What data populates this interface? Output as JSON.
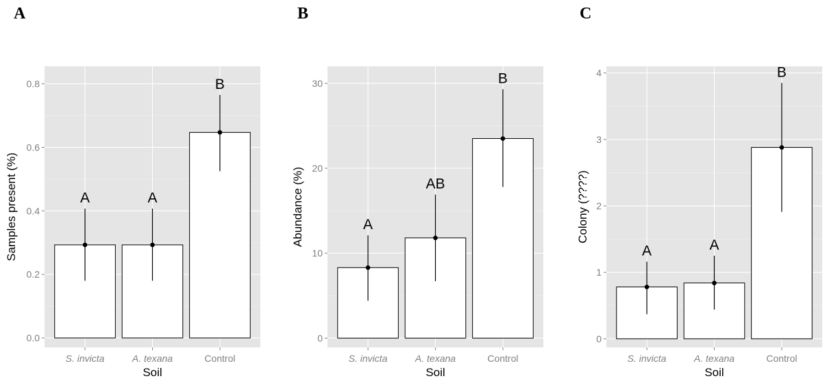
{
  "chart_data": [
    {
      "type": "bar",
      "panel": "A",
      "categories": [
        "S. invicta",
        "A. texana",
        "Control"
      ],
      "categories_italic": [
        true,
        true,
        false
      ],
      "values": [
        0.293,
        0.293,
        0.647
      ],
      "error_low": [
        0.18,
        0.18,
        0.525
      ],
      "error_high": [
        0.407,
        0.407,
        0.765
      ],
      "significance": [
        "A",
        "A",
        "B"
      ],
      "xlabel": "Soil",
      "ylabel": "Samples present (%)",
      "ylim": [
        -0.03,
        0.855
      ],
      "yticks": [
        0.0,
        0.2,
        0.4,
        0.6,
        0.8
      ],
      "ytick_labels": [
        "0.0",
        "0.2",
        "0.4",
        "0.6",
        "0.8"
      ],
      "grid": true
    },
    {
      "type": "bar",
      "panel": "B",
      "categories": [
        "S. invicta",
        "A. texana",
        "Control"
      ],
      "categories_italic": [
        true,
        true,
        false
      ],
      "values": [
        8.3,
        11.8,
        23.5
      ],
      "error_low": [
        4.4,
        6.7,
        17.8
      ],
      "error_high": [
        12.1,
        16.9,
        29.3
      ],
      "significance": [
        "A",
        "AB",
        "B"
      ],
      "xlabel": "Soil",
      "ylabel": "Abundance (%)",
      "ylim": [
        -1.1,
        32.0
      ],
      "yticks": [
        0,
        10,
        20,
        30
      ],
      "ytick_labels": [
        "0",
        "10",
        "20",
        "30"
      ],
      "grid": true
    },
    {
      "type": "bar",
      "panel": "C",
      "categories": [
        "S. invicta",
        "A. texana",
        "Control"
      ],
      "categories_italic": [
        true,
        true,
        false
      ],
      "values": [
        0.78,
        0.84,
        2.88
      ],
      "error_low": [
        0.37,
        0.44,
        1.91
      ],
      "error_high": [
        1.16,
        1.25,
        3.85
      ],
      "significance": [
        "A",
        "A",
        "B"
      ],
      "xlabel": "Soil",
      "ylabel": "Colony (????)",
      "ylim": [
        -0.13,
        4.1
      ],
      "yticks": [
        0,
        1,
        2,
        3,
        4
      ],
      "ytick_labels": [
        "0",
        "1",
        "2",
        "3",
        "4"
      ],
      "grid": true
    }
  ]
}
